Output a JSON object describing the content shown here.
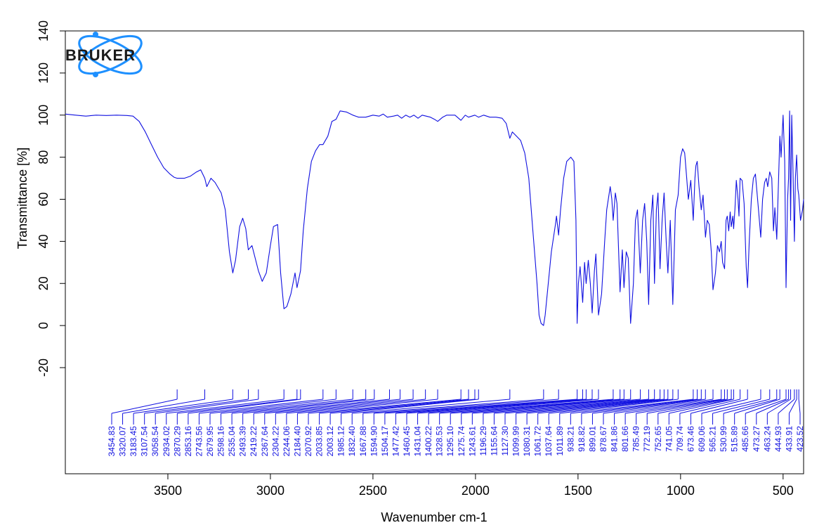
{
  "chart_data": {
    "type": "line",
    "xlabel": "Wavenumber cm-1",
    "ylabel": "Transmittance [%]",
    "xlim": [
      4000,
      400
    ],
    "ylim": [
      -40,
      140
    ],
    "x_ticks": [
      3500,
      3000,
      2500,
      2000,
      1500,
      1000,
      500
    ],
    "y_ticks": [
      140,
      120,
      100,
      80,
      60,
      40,
      20,
      0,
      -20
    ],
    "grid": false,
    "line_color": "#1010e0",
    "series": [
      {
        "points": [
          [
            4000,
            100.5
          ],
          [
            3950,
            100
          ],
          [
            3900,
            99.5
          ],
          [
            3850,
            100
          ],
          [
            3800,
            99.8
          ],
          [
            3750,
            100
          ],
          [
            3700,
            99.8
          ],
          [
            3670,
            99.5
          ],
          [
            3640,
            97
          ],
          [
            3610,
            92
          ],
          [
            3580,
            86
          ],
          [
            3550,
            80
          ],
          [
            3520,
            75
          ],
          [
            3490,
            72
          ],
          [
            3470,
            70.5
          ],
          [
            3454.83,
            70
          ],
          [
            3420,
            70
          ],
          [
            3390,
            71
          ],
          [
            3360,
            73
          ],
          [
            3340,
            74
          ],
          [
            3320.07,
            70
          ],
          [
            3310,
            66
          ],
          [
            3300,
            68
          ],
          [
            3290,
            70
          ],
          [
            3270,
            68
          ],
          [
            3240,
            63
          ],
          [
            3220,
            55
          ],
          [
            3200,
            35
          ],
          [
            3183.45,
            25
          ],
          [
            3170,
            31
          ],
          [
            3150,
            47
          ],
          [
            3135,
            51
          ],
          [
            3120,
            46
          ],
          [
            3107.54,
            36
          ],
          [
            3090,
            38
          ],
          [
            3058.54,
            26
          ],
          [
            3040,
            21
          ],
          [
            3020,
            25
          ],
          [
            3000,
            38
          ],
          [
            2985,
            47
          ],
          [
            2965,
            48
          ],
          [
            2950,
            25
          ],
          [
            2934.02,
            8
          ],
          [
            2920,
            9
          ],
          [
            2900,
            15
          ],
          [
            2880,
            25
          ],
          [
            2870.29,
            18
          ],
          [
            2853.16,
            26
          ],
          [
            2840,
            45
          ],
          [
            2820,
            65
          ],
          [
            2800,
            78
          ],
          [
            2780,
            83
          ],
          [
            2760,
            86
          ],
          [
            2743.56,
            86
          ],
          [
            2720,
            90
          ],
          [
            2700,
            97
          ],
          [
            2679.95,
            98
          ],
          [
            2660,
            102
          ],
          [
            2630,
            101.5
          ],
          [
            2598.16,
            100
          ],
          [
            2570,
            99
          ],
          [
            2535.04,
            99
          ],
          [
            2500,
            100
          ],
          [
            2470,
            99.5
          ],
          [
            2450,
            100.5
          ],
          [
            2430,
            99
          ],
          [
            2400,
            99.5
          ],
          [
            2380,
            100
          ],
          [
            2360,
            98.5
          ],
          [
            2340,
            100
          ],
          [
            2320,
            99
          ],
          [
            2300,
            100
          ],
          [
            2280,
            98.5
          ],
          [
            2260,
            100
          ],
          [
            2220,
            99
          ],
          [
            2200,
            98
          ],
          [
            2184.4,
            97
          ],
          [
            2160,
            99
          ],
          [
            2140,
            100
          ],
          [
            2100,
            100
          ],
          [
            2070.92,
            97.5
          ],
          [
            2050,
            100
          ],
          [
            2033.85,
            99
          ],
          [
            2003.12,
            100
          ],
          [
            1985.12,
            99
          ],
          [
            1960,
            100
          ],
          [
            1930,
            99
          ],
          [
            1900,
            99
          ],
          [
            1870,
            98.5
          ],
          [
            1850,
            96
          ],
          [
            1832.4,
            89
          ],
          [
            1820,
            92
          ],
          [
            1800,
            90
          ],
          [
            1780,
            88
          ],
          [
            1760,
            82
          ],
          [
            1740,
            70
          ],
          [
            1720,
            45
          ],
          [
            1700,
            20
          ],
          [
            1690,
            5
          ],
          [
            1680,
            1
          ],
          [
            1667.88,
            0
          ],
          [
            1660,
            5
          ],
          [
            1645,
            20
          ],
          [
            1630,
            35
          ],
          [
            1610,
            48
          ],
          [
            1605,
            52
          ],
          [
            1594.9,
            43
          ],
          [
            1585,
            55
          ],
          [
            1570,
            70
          ],
          [
            1555,
            78
          ],
          [
            1535,
            80
          ],
          [
            1520,
            78
          ],
          [
            1510,
            50
          ],
          [
            1504.17,
            1
          ],
          [
            1498,
            20
          ],
          [
            1490,
            28
          ],
          [
            1477.42,
            11
          ],
          [
            1468,
            30
          ],
          [
            1460.45,
            20
          ],
          [
            1450,
            31
          ],
          [
            1440,
            20
          ],
          [
            1431.04,
            6
          ],
          [
            1420,
            26
          ],
          [
            1413,
            34
          ],
          [
            1400.22,
            5
          ],
          [
            1385,
            15
          ],
          [
            1370,
            40
          ],
          [
            1360,
            55
          ],
          [
            1343,
            66
          ],
          [
            1335,
            60
          ],
          [
            1328.53,
            50
          ],
          [
            1318,
            63
          ],
          [
            1310,
            58
          ],
          [
            1295.1,
            16
          ],
          [
            1284,
            36
          ],
          [
            1275.74,
            18
          ],
          [
            1265,
            35
          ],
          [
            1255,
            32
          ],
          [
            1243.61,
            1
          ],
          [
            1230,
            20
          ],
          [
            1220,
            50
          ],
          [
            1210,
            55
          ],
          [
            1196.29,
            25
          ],
          [
            1185,
            50
          ],
          [
            1175,
            58
          ],
          [
            1165,
            40
          ],
          [
            1155.64,
            10
          ],
          [
            1145,
            50
          ],
          [
            1135,
            62
          ],
          [
            1127.3,
            20
          ],
          [
            1118,
            55
          ],
          [
            1110,
            63
          ],
          [
            1099.99,
            27
          ],
          [
            1090,
            50
          ],
          [
            1080.31,
            63
          ],
          [
            1070,
            40
          ],
          [
            1061.72,
            25
          ],
          [
            1050,
            50
          ],
          [
            1037.64,
            10
          ],
          [
            1025,
            55
          ],
          [
            1011.89,
            62
          ],
          [
            1000,
            80
          ],
          [
            990,
            84
          ],
          [
            980,
            82
          ],
          [
            970,
            70
          ],
          [
            962,
            60
          ],
          [
            950,
            69
          ],
          [
            938.21,
            50
          ],
          [
            930,
            70
          ],
          [
            925,
            76
          ],
          [
            918.82,
            78
          ],
          [
            910,
            66
          ],
          [
            899.01,
            55
          ],
          [
            890,
            62
          ],
          [
            878.67,
            42
          ],
          [
            870,
            50
          ],
          [
            860,
            48
          ],
          [
            850,
            35
          ],
          [
            841.86,
            17
          ],
          [
            830,
            25
          ],
          [
            820,
            38
          ],
          [
            810,
            35
          ],
          [
            801.66,
            40
          ],
          [
            795,
            30
          ],
          [
            785.49,
            27
          ],
          [
            778,
            50
          ],
          [
            772.19,
            52
          ],
          [
            765,
            45
          ],
          [
            758,
            54
          ],
          [
            752.65,
            47
          ],
          [
            745,
            52
          ],
          [
            741.05,
            46
          ],
          [
            735,
            55
          ],
          [
            728,
            69
          ],
          [
            720,
            60
          ],
          [
            715,
            52
          ],
          [
            709.74,
            70
          ],
          [
            700,
            69
          ],
          [
            690,
            58
          ],
          [
            680,
            28
          ],
          [
            673.46,
            18
          ],
          [
            665,
            40
          ],
          [
            655,
            60
          ],
          [
            645,
            70
          ],
          [
            635,
            72
          ],
          [
            620,
            55
          ],
          [
            609.06,
            42
          ],
          [
            600,
            60
          ],
          [
            590,
            68
          ],
          [
            582,
            70
          ],
          [
            575,
            66
          ],
          [
            565.21,
            73
          ],
          [
            555,
            70
          ],
          [
            547,
            45
          ],
          [
            540,
            56
          ],
          [
            530.99,
            41
          ],
          [
            522,
            70
          ],
          [
            515.89,
            90
          ],
          [
            510,
            80
          ],
          [
            500,
            100
          ],
          [
            492,
            78
          ],
          [
            485.66,
            18
          ],
          [
            478,
            60
          ],
          [
            473.27,
            70
          ],
          [
            468,
            102
          ],
          [
            463.24,
            50
          ],
          [
            458,
            100
          ],
          [
            452,
            75
          ],
          [
            444.93,
            40
          ],
          [
            440,
            70
          ],
          [
            433.91,
            81
          ],
          [
            428,
            65
          ],
          [
            423.52,
            62
          ],
          [
            415,
            50
          ],
          [
            405,
            55
          ],
          [
            400,
            60
          ]
        ]
      }
    ],
    "peak_labels": [
      "3454.83",
      "3320.07",
      "3183.45",
      "3107.54",
      "3058.54",
      "2934.02",
      "2870.29",
      "2853.16",
      "2743.56",
      "2679.95",
      "2598.16",
      "2535.04",
      "2493.39",
      "2419.22",
      "2367.64",
      "2304.22",
      "2244.06",
      "2184.40",
      "2070.92",
      "2033.85",
      "2003.12",
      "1985.12",
      "1832.40",
      "1667.88",
      "1594.90",
      "1504.17",
      "1477.42",
      "1460.45",
      "1431.04",
      "1400.22",
      "1328.53",
      "1295.10",
      "1275.74",
      "1243.61",
      "1196.29",
      "1155.64",
      "1127.30",
      "1099.99",
      "1080.31",
      "1061.72",
      "1037.64",
      "1011.89",
      "938.21",
      "918.82",
      "899.01",
      "878.67",
      "841.86",
      "801.66",
      "785.49",
      "772.19",
      "752.65",
      "741.05",
      "709.74",
      "673.46",
      "609.06",
      "565.21",
      "530.99",
      "515.89",
      "485.66",
      "473.27",
      "463.24",
      "444.93",
      "433.91",
      "423.52"
    ]
  },
  "logo": {
    "text": "BRUKER",
    "color": "#1e90ff"
  }
}
